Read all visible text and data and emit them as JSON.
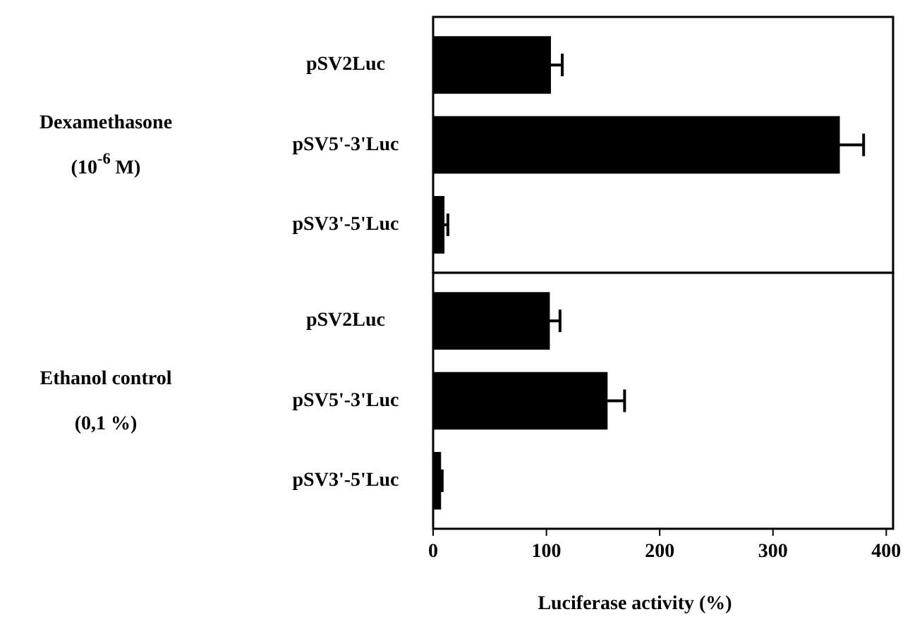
{
  "chart_data": [
    {
      "type": "bar",
      "orientation": "horizontal",
      "ylabel": "Dexamethasone (10$^{-6}$ M)",
      "categories": [
        "pSV2Luc",
        "pSV5'-3'Luc",
        "pSV3'-5'Luc"
      ],
      "values": [
        104,
        359,
        10
      ],
      "errors": [
        10,
        21,
        3
      ],
      "color": "#000000",
      "xlim": [
        0,
        406
      ],
      "xticks": [
        0,
        100,
        200,
        300,
        400
      ],
      "tick_labels": "y"
    },
    {
      "type": "bar",
      "orientation": "horizontal",
      "ylabel": "Ethanol control (0,1 %)",
      "categories": [
        "pSV2Luc",
        "pSV5'-3'Luc",
        "pSV3'-5'Luc"
      ],
      "values": [
        103,
        154,
        7
      ],
      "errors": [
        9,
        15,
        1
      ],
      "color": "#000000",
      "xlim": [
        0,
        406
      ],
      "xticks": [
        0,
        100,
        200,
        300,
        400
      ],
      "xlabel": "Luciferase activity (%)"
    }
  ]
}
